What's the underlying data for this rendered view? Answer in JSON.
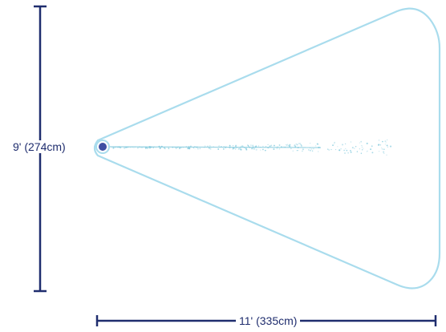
{
  "dimensions": {
    "height_label": "9' (274cm)",
    "width_label": "11' (335cm)"
  },
  "colors": {
    "dimension_line": "#1f2d6e",
    "coverage_outline": "#a9dced",
    "spray": "#7ec8dc",
    "sensor_fill": "#3f4fa3",
    "sensor_ring": "#a9dced"
  },
  "icons": {
    "sensor": "sensor-dot-icon"
  }
}
